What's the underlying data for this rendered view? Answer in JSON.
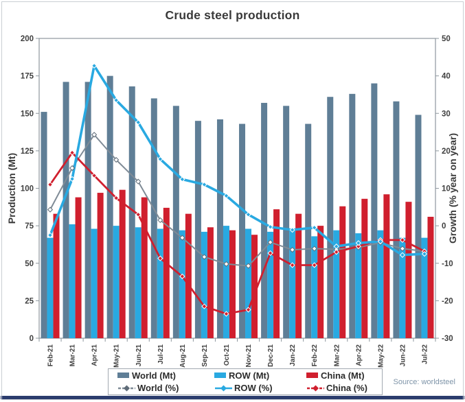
{
  "title": "Crude steel production",
  "source": "Source: worldsteel",
  "palette": {
    "axis": "#8e979e",
    "tick_text": "#3e3e3e",
    "title_text": "#3a3a3a",
    "source_text": "#7e94a8",
    "bottom_rule": "#2b3c6d",
    "legend_border": "#a2a9b0"
  },
  "chart_data": {
    "type": "combo-bar-line",
    "title": "Crude steel production",
    "categories": [
      "Feb-21",
      "Mar-21",
      "Apr-21",
      "May-21",
      "Jun-21",
      "Jul-21",
      "Aug-21",
      "Sep-21",
      "Oct-21",
      "Nov-21",
      "Dec-21",
      "Jan-22",
      "Feb-22",
      "Mar-22",
      "Apr-22",
      "May-22",
      "Jun-22",
      "Jul-22"
    ],
    "bar_series": [
      {
        "key": "world-mt",
        "name": "World (Mt)",
        "axis": "left",
        "color": "#5f7e96",
        "values": [
          151,
          171,
          171,
          175,
          168,
          160,
          155,
          145,
          146,
          143,
          157,
          155,
          143,
          161,
          163,
          170,
          158,
          149
        ]
      },
      {
        "key": "row-mt",
        "name": "ROW (Mt)",
        "axis": "left",
        "color": "#29a9e1",
        "values": [
          67,
          76,
          73,
          75,
          74,
          73,
          72,
          71,
          75,
          73,
          71,
          72,
          68,
          72,
          70,
          72,
          67,
          67
        ]
      },
      {
        "key": "china-mt",
        "name": "China (Mt)",
        "axis": "left",
        "color": "#d01f2e",
        "values": [
          83,
          94,
          97,
          99,
          94,
          87,
          83,
          74,
          72,
          69,
          86,
          83,
          75,
          88,
          93,
          96,
          91,
          81
        ]
      }
    ],
    "line_series": [
      {
        "key": "world-pct",
        "name": "World (%)",
        "axis": "right",
        "color": "#7f8b96",
        "marker_fill": "#ffffff",
        "marker_stroke": "#5f6c78",
        "dashed": true,
        "values": [
          4.3,
          15.4,
          24.3,
          17.6,
          11.8,
          1.5,
          -3.2,
          -8.3,
          -10.2,
          -10.7,
          -4.4,
          -6.4,
          -6.1,
          -6.3,
          -5.8,
          -4.5,
          -6.1,
          -6.8
        ]
      },
      {
        "key": "china-pct",
        "name": "China (%)",
        "axis": "right",
        "color": "#d01f2e",
        "marker_fill": "#d01f2e",
        "marker_stroke": "#ffffff",
        "dashed": true,
        "values": [
          11.0,
          19.5,
          13.4,
          7.4,
          3.0,
          -8.7,
          -13.5,
          -21.5,
          -23.5,
          -22.4,
          -7.3,
          -10.5,
          -10.5,
          -7.0,
          -5.5,
          -3.8,
          -3.8,
          -6.8
        ]
      },
      {
        "key": "row-pct",
        "name": "ROW (%)",
        "axis": "right",
        "color": "#29a9e1",
        "marker_fill": "#29a9e1",
        "marker_stroke": "#ffffff",
        "dashed": false,
        "values": [
          -2.5,
          12.5,
          42.7,
          33.5,
          27.6,
          17.8,
          12.4,
          11.0,
          8.0,
          3.0,
          -0.3,
          -1.1,
          -0.5,
          -5.5,
          -4.6,
          -4.2,
          -7.8,
          -7.5
        ]
      }
    ],
    "left_axis": {
      "label": "Production (Mt)",
      "min": 0,
      "max": 200,
      "ticks": [
        0,
        25,
        50,
        75,
        100,
        125,
        150,
        175,
        200
      ]
    },
    "right_axis": {
      "label": "Growth (% year on year)",
      "min": -30,
      "max": 50,
      "ticks": [
        -30,
        -20,
        -10,
        0,
        10,
        20,
        30,
        40,
        50
      ]
    },
    "grid": false,
    "legend_position": "bottom",
    "legend_order": [
      "world-mt",
      "row-mt",
      "china-mt",
      "world-pct",
      "row-pct",
      "china-pct"
    ]
  }
}
